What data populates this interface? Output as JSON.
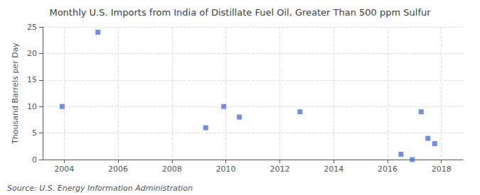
{
  "chart_data": {
    "type": "scatter",
    "title": "Monthly U.S. Imports from India of Distillate Fuel Oil, Greater Than 500 ppm Sulfur",
    "ylabel": "Thousand Barrels per Day",
    "annotations": [
      "Source: U.S. Energy Information Administration"
    ],
    "x": [
      2003.92,
      2005.25,
      2009.25,
      2009.92,
      2010.5,
      2012.75,
      2016.5,
      2016.92,
      2017.25,
      2017.5,
      2017.75
    ],
    "values": [
      10,
      24,
      6,
      10,
      8,
      9,
      1,
      0,
      9,
      4,
      3
    ],
    "marker": "square",
    "xlim": [
      2003.2,
      2018.8
    ],
    "xticks": [
      2004,
      2006,
      2008,
      2010,
      2012,
      2014,
      2016,
      2018
    ],
    "ylim": [
      0,
      25
    ],
    "yticks": [
      0,
      5,
      10,
      15,
      20,
      25
    ],
    "grid": true
  }
}
